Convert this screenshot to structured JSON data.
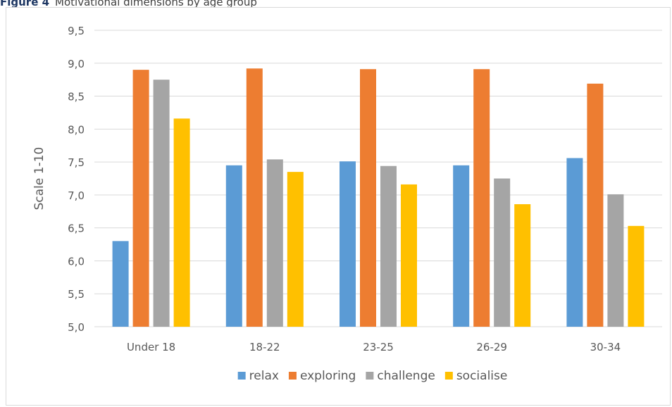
{
  "caption": {
    "label": "Figure 4",
    "text": "Motivational dimensions by age group"
  },
  "chart_data": {
    "type": "bar",
    "title": "Motivational dimensions by age group",
    "xlabel": "",
    "ylabel": "Scale 1-10",
    "ylim": [
      5.0,
      9.5
    ],
    "ytick_step": 0.5,
    "ytick_labels": [
      "5,0",
      "5,5",
      "6,0",
      "6,5",
      "7,0",
      "7,5",
      "8,0",
      "8,5",
      "9,0",
      "9,5"
    ],
    "grid": true,
    "legend_position": "bottom",
    "categories": [
      "Under 18",
      "18-22",
      "23-25",
      "26-29",
      "30-34"
    ],
    "series": [
      {
        "name": "relax",
        "color": "#5b9bd5",
        "values": [
          6.3,
          7.45,
          7.51,
          7.45,
          7.56
        ]
      },
      {
        "name": "exploring",
        "color": "#ed7d31",
        "values": [
          8.9,
          8.92,
          8.91,
          8.91,
          8.69
        ]
      },
      {
        "name": "challenge",
        "color": "#a5a5a5",
        "values": [
          8.75,
          7.54,
          7.44,
          7.25,
          7.01
        ]
      },
      {
        "name": "socialise",
        "color": "#ffc000",
        "values": [
          8.16,
          7.35,
          7.16,
          6.86,
          6.53
        ]
      }
    ]
  }
}
